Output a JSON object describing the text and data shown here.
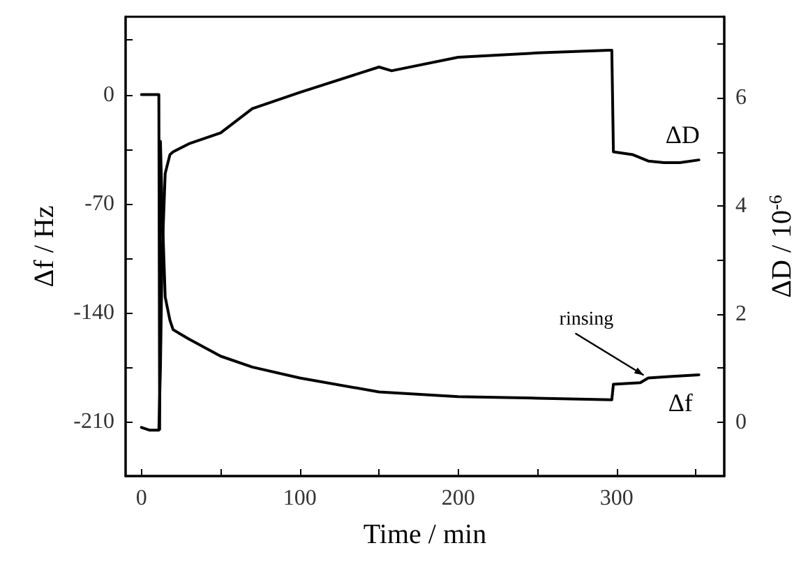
{
  "chart_data": {
    "type": "line",
    "xlabel": "Time / min",
    "ylabel": "Δf / Hz",
    "y2label": "ΔD / 10$^{-6}$",
    "xlim": [
      -10,
      368
    ],
    "xticks": [
      0,
      {
        "value": 50,
        "label": null
      },
      100,
      {
        "value": 150,
        "label": null
      },
      200,
      {
        "value": 250,
        "label": null
      },
      300,
      {
        "value": 350,
        "label": null
      }
    ],
    "ylim": [
      -245,
      50
    ],
    "yticks": [
      {
        "value": -175,
        "label": null
      },
      {
        "value": -105,
        "label": null
      },
      {
        "value": -35,
        "label": null
      },
      {
        "value": 35,
        "label": null
      },
      -210,
      -140,
      -70,
      0
    ],
    "y2lim": [
      -1,
      7.5
    ],
    "y2ticks": [
      0,
      {
        "value": 1,
        "label": null
      },
      2,
      {
        "value": 3,
        "label": null
      },
      4,
      {
        "value": 5,
        "label": null
      },
      6,
      {
        "value": 7,
        "label": null
      }
    ],
    "grid": false,
    "legend": false,
    "marker": "none",
    "line_style": "solid",
    "annotations": [
      {
        "text": "rinsing",
        "x": 318,
        "y": -182
      }
    ],
    "series": [
      {
        "name": "ΔD",
        "color": "#000000",
        "axis": "y2",
        "x": [
          0,
          5,
          11,
          12,
          13,
          15,
          18,
          20,
          30,
          50,
          70,
          100,
          150,
          158,
          200,
          250,
          295,
          297,
          298,
          310,
          320,
          330,
          340,
          352
        ],
        "values": [
          -0.1,
          -0.15,
          -0.15,
          1,
          3,
          4.6,
          4.95,
          5.0,
          5.15,
          5.35,
          5.8,
          6.1,
          6.57,
          6.5,
          6.75,
          6.83,
          6.88,
          6.88,
          5.0,
          4.95,
          4.83,
          4.8,
          4.8,
          4.85
        ]
      },
      {
        "name": "Δf",
        "color": "#000000",
        "x": [
          0,
          5,
          11,
          11.5,
          12,
          13,
          15,
          18,
          20,
          30,
          50,
          70,
          100,
          150,
          200,
          250,
          297,
          298,
          315,
          320,
          335,
          352
        ],
        "values": [
          0,
          0,
          0,
          -215,
          -30,
          -70,
          -130,
          -145,
          -151,
          -157,
          -168,
          -175,
          -182,
          -191,
          -194,
          -195,
          -196,
          -186,
          -185,
          -182,
          -181,
          -180
        ]
      }
    ]
  }
}
